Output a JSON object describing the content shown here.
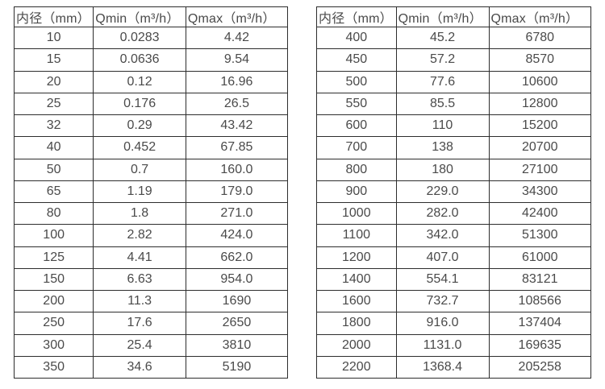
{
  "tables": [
    {
      "name": "flow-range-table-small-diameters",
      "headers": [
        "内径（mm）",
        "Qmin（m³/h）",
        "Qmax（m³/h）"
      ],
      "rows": [
        [
          "10",
          "0.0283",
          "4.42"
        ],
        [
          "15",
          "0.0636",
          "9.54"
        ],
        [
          "20",
          "0.12",
          "16.96"
        ],
        [
          "25",
          "0.176",
          "26.5"
        ],
        [
          "32",
          "0.29",
          "43.42"
        ],
        [
          "40",
          "0.452",
          "67.85"
        ],
        [
          "50",
          "0.7",
          "160.0"
        ],
        [
          "65",
          "1.19",
          "179.0"
        ],
        [
          "80",
          "1.8",
          "271.0"
        ],
        [
          "100",
          "2.82",
          "424.0"
        ],
        [
          "125",
          "4.41",
          "662.0"
        ],
        [
          "150",
          "6.63",
          "954.0"
        ],
        [
          "200",
          "11.3",
          "1690"
        ],
        [
          "250",
          "17.6",
          "2650"
        ],
        [
          "300",
          "25.4",
          "3810"
        ],
        [
          "350",
          "34.6",
          "5190"
        ]
      ]
    },
    {
      "name": "flow-range-table-large-diameters",
      "headers": [
        "内径（mm）",
        "Qmin（m³/h）",
        "Qmax（m³/h）"
      ],
      "rows": [
        [
          "400",
          "45.2",
          "6780"
        ],
        [
          "450",
          "57.2",
          "8570"
        ],
        [
          "500",
          "77.6",
          "10600"
        ],
        [
          "550",
          "85.5",
          "12800"
        ],
        [
          "600",
          "110",
          "15200"
        ],
        [
          "700",
          "138",
          "20700"
        ],
        [
          "800",
          "180",
          "27100"
        ],
        [
          "900",
          "229.0",
          "34300"
        ],
        [
          "1000",
          "282.0",
          "42400"
        ],
        [
          "1100",
          "342.0",
          "51300"
        ],
        [
          "1200",
          "407.0",
          "61000"
        ],
        [
          "1400",
          "554.1",
          "83121"
        ],
        [
          "1600",
          "732.7",
          "108566"
        ],
        [
          "1800",
          "916.0",
          "137404"
        ],
        [
          "2000",
          "1131.0",
          "169635"
        ],
        [
          "2200",
          "1368.4",
          "205258"
        ]
      ]
    }
  ]
}
